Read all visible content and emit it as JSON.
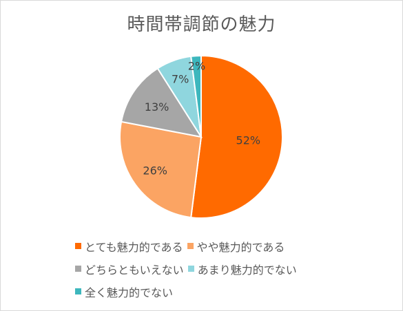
{
  "chart_data": {
    "type": "pie",
    "title": "時間帯調節の魅力",
    "categories": [
      "とても魅力的である",
      "やや魅力的である",
      "どちらともいえない",
      "あまり魅力的でない",
      "全く魅力的でない"
    ],
    "values": [
      52,
      26,
      13,
      7,
      2
    ],
    "data_labels": [
      "52%",
      "26%",
      "13%",
      "7%",
      "2%"
    ],
    "colors": [
      "#ff6a00",
      "#fba463",
      "#a6a6a6",
      "#8fd6de",
      "#3db7bd"
    ],
    "legend_position": "bottom"
  }
}
